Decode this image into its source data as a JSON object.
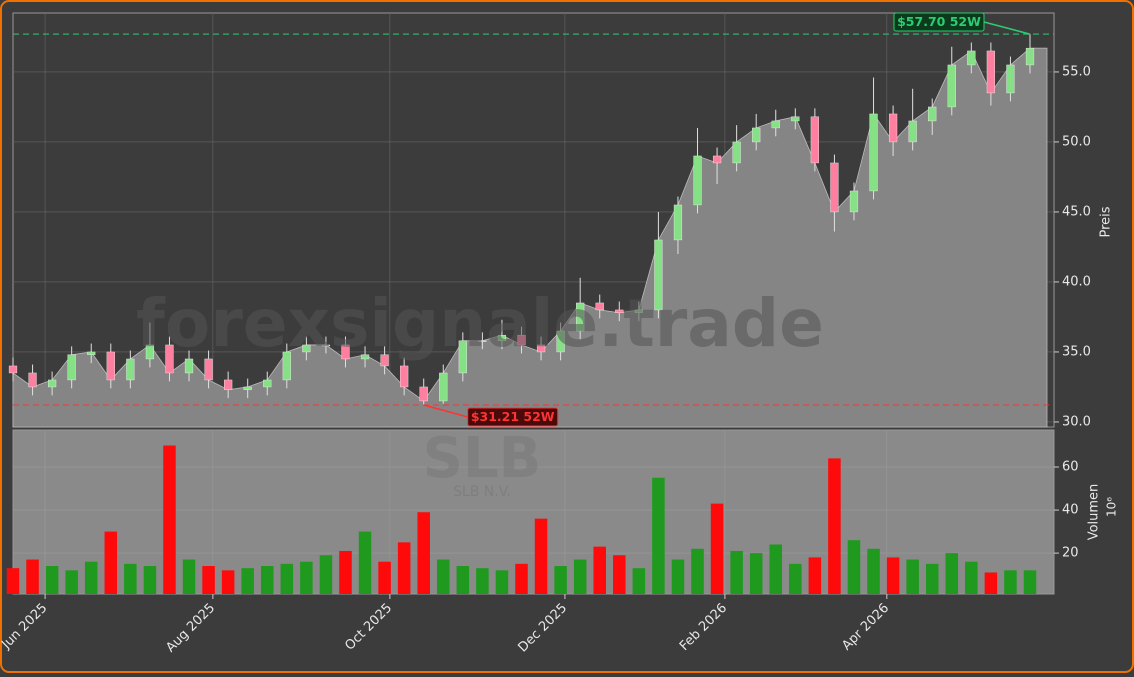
{
  "chart_data": {
    "type": "candlestick",
    "watermark": "forexsignale.trade",
    "symbol": "SLB",
    "company": "SLB N.V.",
    "ylabel": "Preis",
    "y2label": "Volumen",
    "y2_scale_label": "10⁶",
    "open": [
      34,
      33.5,
      32.5,
      33,
      34.8,
      35,
      33,
      34.5,
      35.5,
      33.5,
      34.5,
      33,
      32.3,
      32.5,
      33,
      35,
      35.5,
      35.5,
      34.5,
      34.8,
      34,
      32.5,
      31.5,
      33.5,
      35.8,
      35.8,
      36.2,
      35.5,
      35,
      36.5,
      38.5,
      38,
      37.8,
      38,
      43,
      45.5,
      49,
      48.5,
      50,
      51,
      51.5,
      51.8,
      48.5,
      45,
      46.5,
      52,
      50,
      51.5,
      52.5,
      55.5,
      56.5,
      53.5,
      55.5
    ],
    "high": [
      34.6,
      34.1,
      33.6,
      35.4,
      35.6,
      35.6,
      35.1,
      37.1,
      36.1,
      35.1,
      35.1,
      33.6,
      33.1,
      33.6,
      35.6,
      36.1,
      36.1,
      36.1,
      35.4,
      35.4,
      34.6,
      33.1,
      34.1,
      36.4,
      36.4,
      37.3,
      36.8,
      36.1,
      37.1,
      40.3,
      39.1,
      38.6,
      38.6,
      45,
      46.1,
      51,
      49.6,
      51.2,
      52,
      52.3,
      52.4,
      52.4,
      49.1,
      47.1,
      54.6,
      52.6,
      53.8,
      53.1,
      56.8,
      57.1,
      57.1,
      56.1,
      57.7
    ],
    "low": [
      32.9,
      31.9,
      31.9,
      32.4,
      34.2,
      32.4,
      32.4,
      33.9,
      32.9,
      32.9,
      32.4,
      31.7,
      31.7,
      31.9,
      32.4,
      34.4,
      34.9,
      33.9,
      33.9,
      33.4,
      31.9,
      31.21,
      31.3,
      32.9,
      35.2,
      35.2,
      34.9,
      34.4,
      34.4,
      35.9,
      37.4,
      37.2,
      37.2,
      37.4,
      42,
      44.9,
      47,
      47.9,
      49.4,
      50.4,
      50.9,
      47.9,
      43.6,
      44.4,
      45.9,
      49,
      49.4,
      50.5,
      51.9,
      54.9,
      52.6,
      52.9,
      54.9
    ],
    "close": [
      33.5,
      32.5,
      33,
      34.8,
      35,
      33,
      34.5,
      35.5,
      33.5,
      34.5,
      33,
      32.3,
      32.5,
      33,
      35,
      35.5,
      35.5,
      34.5,
      34.8,
      34,
      32.5,
      31.5,
      33.5,
      35.8,
      35.8,
      36.2,
      35.5,
      35,
      36.5,
      38.5,
      38,
      37.8,
      38,
      43,
      45.5,
      49,
      48.5,
      50,
      51,
      51.5,
      51.8,
      48.5,
      45,
      46.5,
      52,
      50,
      51.5,
      52.5,
      55.5,
      56.5,
      53.5,
      55.5,
      56.7
    ],
    "volume": [
      13,
      17,
      14,
      12,
      16,
      30,
      15,
      14,
      70,
      17,
      14,
      12,
      13,
      14,
      15,
      16,
      19,
      21,
      30,
      16,
      25,
      39,
      17,
      14,
      13,
      12,
      15,
      36,
      14,
      17,
      23,
      19,
      13,
      55,
      17,
      22,
      43,
      21,
      20,
      24,
      15,
      18,
      64,
      26,
      22,
      18,
      17,
      15,
      20,
      16,
      11,
      12,
      12
    ],
    "up_color": "#86e086",
    "down_color": "#ff7fa0",
    "volume_up_color": "#1f9a1f",
    "volume_down_color": "#ff0a0a",
    "area_color": "#858585",
    "ylim": [
      29.64,
      59.21
    ],
    "yticks": [
      {
        "value": 30,
        "label": "30.0"
      },
      {
        "value": 35,
        "label": "35.0"
      },
      {
        "value": 40,
        "label": "40.0"
      },
      {
        "value": 45,
        "label": "45.0"
      },
      {
        "value": 50,
        "label": "50.0"
      },
      {
        "value": 55,
        "label": "55.0"
      }
    ],
    "y2lim": [
      1,
      77.2
    ],
    "y2ticks": [
      20,
      40,
      60
    ],
    "xlim": [
      0,
      52
    ],
    "xticks": [
      {
        "value": 1.64,
        "label": "Jun 2025"
      },
      {
        "value": 10.22,
        "label": "Aug 2025"
      },
      {
        "value": 19.27,
        "label": "Oct 2025"
      },
      {
        "value": 28.22,
        "label": "Dec 2025"
      },
      {
        "value": 36.4,
        "label": "Feb 2026"
      },
      {
        "value": 44.68,
        "label": "Apr 2026"
      }
    ],
    "grid": true,
    "annotations": [
      {
        "text": "$57.70 52W",
        "value": 57.7,
        "index": 52,
        "color": "#2ecc71"
      },
      {
        "text": "$31.21 52W",
        "value": 31.21,
        "index": 21,
        "color": "#ff3333"
      }
    ]
  }
}
